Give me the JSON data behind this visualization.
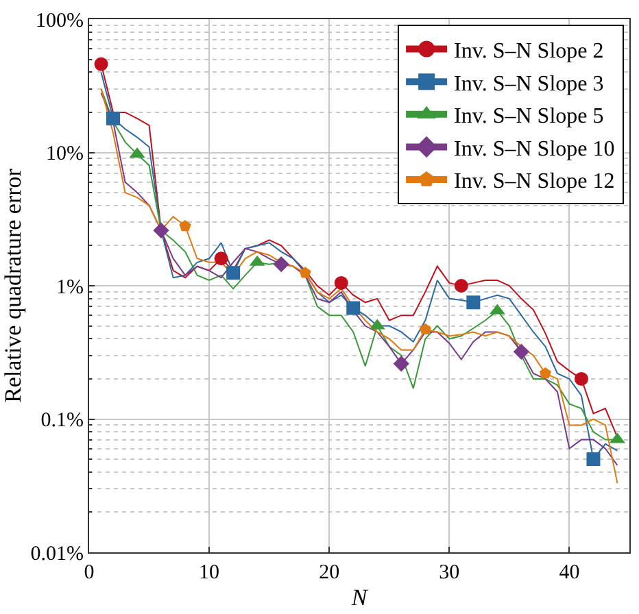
{
  "chart_data": {
    "type": "line",
    "xlabel": "N",
    "ylabel": "Relative quadrature error",
    "x": [
      1,
      2,
      3,
      4,
      5,
      6,
      7,
      8,
      9,
      10,
      11,
      12,
      13,
      14,
      15,
      16,
      17,
      18,
      19,
      20,
      21,
      22,
      23,
      24,
      25,
      26,
      27,
      28,
      29,
      30,
      31,
      32,
      33,
      34,
      35,
      36,
      37,
      38,
      39,
      40,
      41,
      42,
      43,
      44
    ],
    "series": [
      {
        "name": "Inv. S–N Slope 2",
        "color": "#c0101e",
        "values": [
          46,
          20,
          20,
          18,
          16,
          2.6,
          1.3,
          1.15,
          1.4,
          1.3,
          1.6,
          1.3,
          1.9,
          2.0,
          2.2,
          2.0,
          1.6,
          1.3,
          1.0,
          0.85,
          1.05,
          0.85,
          0.75,
          0.8,
          0.55,
          0.6,
          0.6,
          0.9,
          1.4,
          1.05,
          1.0,
          1.05,
          1.1,
          1.1,
          1.0,
          0.8,
          0.66,
          0.44,
          0.27,
          0.23,
          0.2,
          0.11,
          0.12,
          0.073
        ]
      },
      {
        "name": "Inv. S–N Slope 3",
        "color": "#2a6aa0",
        "values": [
          40,
          18,
          15,
          13,
          11,
          2.6,
          1.15,
          1.2,
          1.5,
          1.6,
          2.1,
          1.25,
          1.9,
          2.0,
          2.1,
          1.8,
          1.6,
          1.25,
          0.9,
          0.75,
          0.85,
          0.68,
          0.6,
          0.5,
          0.5,
          0.45,
          0.38,
          0.55,
          1.1,
          0.8,
          0.78,
          0.75,
          0.8,
          0.85,
          0.8,
          0.6,
          0.45,
          0.35,
          0.22,
          0.2,
          0.15,
          0.05,
          0.065,
          0.058
        ]
      },
      {
        "name": "Inv. S–N Slope 5",
        "color": "#3a9a3a",
        "values": [
          30,
          17,
          12,
          9.7,
          8,
          2.6,
          2.2,
          1.8,
          1.2,
          1.1,
          1.2,
          0.95,
          1.2,
          1.5,
          1.45,
          1.5,
          1.4,
          1.2,
          0.7,
          0.6,
          0.6,
          0.45,
          0.25,
          0.5,
          0.35,
          0.3,
          0.17,
          0.4,
          0.5,
          0.4,
          0.42,
          0.48,
          0.55,
          0.65,
          0.5,
          0.3,
          0.2,
          0.2,
          0.18,
          0.13,
          0.12,
          0.08,
          0.07,
          0.07
        ]
      },
      {
        "name": "Inv. S–N Slope 10",
        "color": "#7a3a8a",
        "values": [
          28,
          17,
          6,
          5,
          4,
          2.6,
          1.6,
          1.2,
          1.4,
          1.3,
          1.15,
          1.5,
          1.9,
          1.8,
          1.6,
          1.45,
          1.4,
          1.2,
          0.8,
          0.75,
          0.9,
          0.65,
          0.5,
          0.45,
          0.35,
          0.26,
          0.33,
          0.45,
          0.45,
          0.37,
          0.28,
          0.38,
          0.45,
          0.45,
          0.42,
          0.32,
          0.22,
          0.2,
          0.16,
          0.06,
          0.07,
          0.07,
          0.06,
          0.045
        ]
      },
      {
        "name": "Inv. S–N Slope 12",
        "color": "#e07a10",
        "values": [
          30,
          14,
          5,
          4.6,
          4,
          2.6,
          3.3,
          2.8,
          1.6,
          1.5,
          1.5,
          1.2,
          1.6,
          1.8,
          1.7,
          1.5,
          1.4,
          1.25,
          0.9,
          0.8,
          0.95,
          0.7,
          0.55,
          0.45,
          0.4,
          0.33,
          0.33,
          0.47,
          0.45,
          0.42,
          0.43,
          0.45,
          0.42,
          0.45,
          0.42,
          0.35,
          0.3,
          0.22,
          0.2,
          0.09,
          0.09,
          0.1,
          0.09,
          0.033
        ]
      },
      {
        "type": "scatter",
        "color": "#c0101e",
        "marker": "circle",
        "x": [
          1,
          11,
          21,
          31,
          41
        ],
        "values": [
          46,
          1.6,
          1.05,
          1.0,
          0.2
        ]
      },
      {
        "type": "scatter",
        "color": "#2a6aa0",
        "marker": "square",
        "x": [
          2,
          12,
          22,
          32,
          42
        ],
        "values": [
          18,
          1.25,
          0.68,
          0.75,
          0.05
        ]
      },
      {
        "type": "scatter",
        "color": "#3a9a3a",
        "marker": "triangle",
        "x": [
          4,
          14,
          24,
          34,
          44
        ],
        "values": [
          9.7,
          1.5,
          0.5,
          0.65,
          0.07
        ]
      },
      {
        "type": "scatter",
        "color": "#7a3a8a",
        "marker": "diamond",
        "x": [
          6,
          16,
          26,
          36
        ],
        "values": [
          2.6,
          1.45,
          0.26,
          0.32
        ]
      },
      {
        "type": "scatter",
        "color": "#e07a10",
        "x": [
          8,
          18,
          28,
          38
        ],
        "values": [
          2.8,
          1.25,
          0.47,
          0.22
        ]
      }
    ],
    "xlim": [
      0,
      45
    ],
    "xticks": [
      0,
      10,
      20,
      30,
      40
    ],
    "ylim": [
      0.01,
      100
    ],
    "log": "y",
    "yticks": [
      {
        "value": 0.01,
        "label": "0.01%"
      },
      {
        "value": 0.1,
        "label": "0.1%"
      },
      {
        "value": 1,
        "label": "1%"
      },
      {
        "value": 10,
        "label": "10%"
      },
      {
        "value": 100,
        "label": "100%"
      }
    ],
    "grid": true,
    "legend": "top right"
  }
}
